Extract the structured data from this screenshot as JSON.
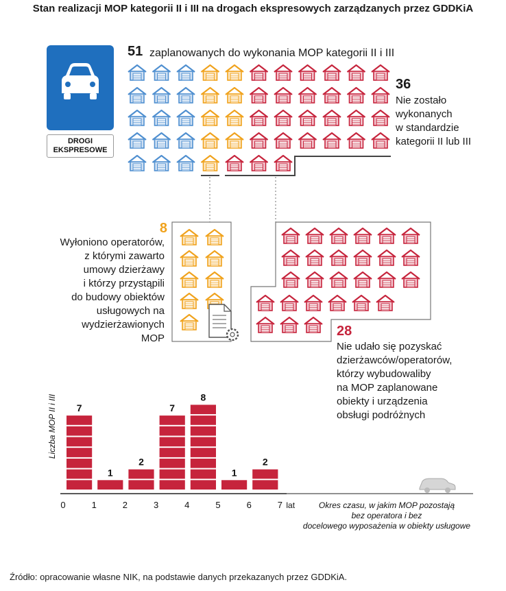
{
  "title": "Stan realizacji MOP kategorii II i III na drogach ekspresowych zarządzanych przez GDDKiA",
  "sign": {
    "label_line1": "DROGI",
    "label_line2": "EKSPRESOWE",
    "car_icon": "car-icon"
  },
  "total": {
    "number": "51",
    "text": "zaplanowanych do wykonania MOP kategorii II i III"
  },
  "not_done": {
    "number": "36",
    "lines": [
      "Nie zostało",
      "wykonanych",
      "w standardzie",
      "kategorii II lub III"
    ]
  },
  "operators": {
    "number": "8",
    "lines": [
      "Wyłoniono operatorów,",
      "z którymi zawarto",
      "umowy dzierżawy",
      "i którzy przystąpili",
      "do budowy obiektów",
      "usługowych na",
      "wydzierżawionych",
      "MOP"
    ]
  },
  "no_tenants": {
    "number": "28",
    "lines": [
      "Nie udało się pozyskać",
      "dzierżawców/operatorów,",
      "którzy wybudowaliby",
      "na MOP zaplanowane",
      "obiekty i urządzenia",
      "obsługi podróżnych"
    ]
  },
  "colors": {
    "blue": "#4f8fd0",
    "orange": "#f0a21c",
    "red": "#c6243c",
    "sign_blue": "#1f6fbe"
  },
  "chart_data": {
    "type": "bar",
    "ylabel": "Liczba MOP II i III",
    "xlabel": "Okres czasu, w jakim MOP pozostają bez operatora i bez docelowego wyposażenia w obiekty usługowe",
    "x_unit": "lat",
    "x_ticks": [
      "0",
      "1",
      "2",
      "3",
      "4",
      "5",
      "6",
      "7"
    ],
    "bins": [
      [
        0,
        1
      ],
      [
        1,
        2
      ],
      [
        2,
        3
      ],
      [
        3,
        4
      ],
      [
        4,
        5
      ],
      [
        5,
        6
      ],
      [
        6,
        7
      ]
    ],
    "values": [
      7,
      1,
      2,
      7,
      8,
      1,
      2
    ],
    "labels": [
      "7",
      "1",
      "2",
      "7",
      "8",
      "1",
      "2"
    ]
  },
  "source": "Źródło: opracowanie własne NIK, na podstawie danych przekazanych przez GDDKiA."
}
